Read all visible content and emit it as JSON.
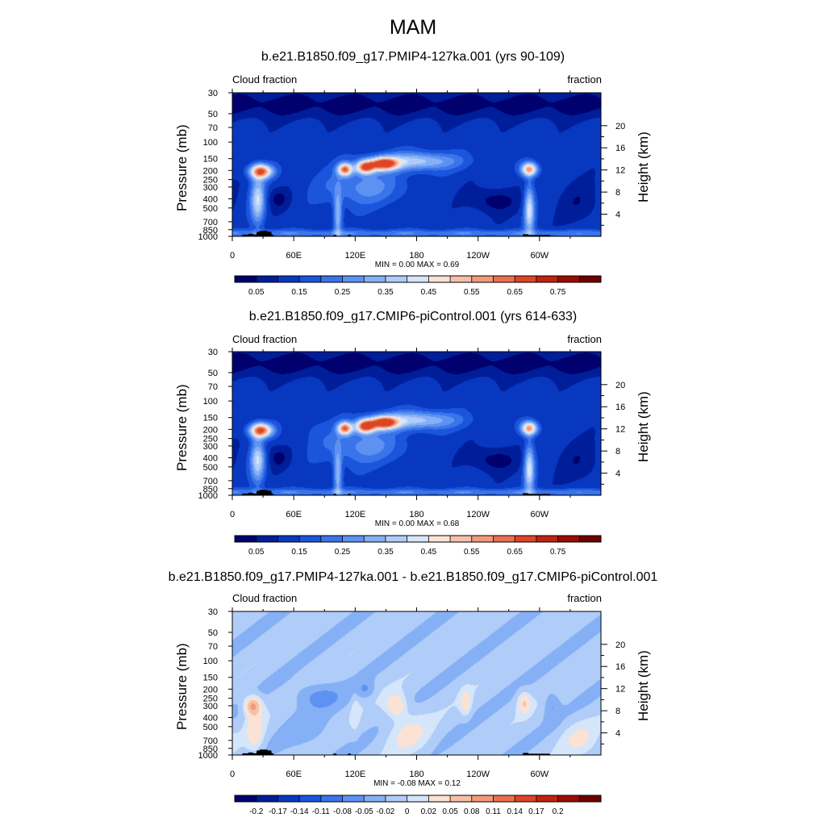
{
  "title": "MAM",
  "panels": [
    {
      "title": "b.e21.B1850.f09_g17.PMIP4-127ka.001 (yrs 90-109)",
      "left_label": "Cloud fraction",
      "right_label": "fraction",
      "y_label": "Pressure (mb)",
      "y2_label": "Height (km)",
      "min_max": "MIN =   0.00  MAX =   0.69"
    },
    {
      "title": "b.e21.B1850.f09_g17.CMIP6-piControl.001 (yrs 614-633)",
      "left_label": "Cloud fraction",
      "right_label": "fraction",
      "y_label": "Pressure (mb)",
      "y2_label": "Height (km)",
      "min_max": "MIN =   0.00  MAX =   0.68"
    },
    {
      "title": "b.e21.B1850.f09_g17.PMIP4-127ka.001 - b.e21.B1850.f09_g17.CMIP6-piControl.001",
      "left_label": "Cloud fraction",
      "right_label": "fraction",
      "y_label": "Pressure (mb)",
      "y2_label": "Height (km)",
      "min_max": "MIN =  -0.08  MAX =   0.12"
    }
  ],
  "chart_data": [
    {
      "type": "heatmap",
      "title": "b.e21.B1850.f09_g17.PMIP4-127ka.001 (yrs 90-109)",
      "variable": "Cloud fraction",
      "units": "fraction",
      "x_ticks": [
        "0",
        "60E",
        "120E",
        "180",
        "120W",
        "60W"
      ],
      "x_tick_values": [
        0,
        60,
        120,
        180,
        240,
        300
      ],
      "xlim": [
        0,
        360
      ],
      "y_ticks": [
        "30",
        "50",
        "70",
        "100",
        "150",
        "200",
        "250",
        "300",
        "400",
        "500",
        "700",
        "850",
        "1000"
      ],
      "y_tick_values": [
        30,
        50,
        70,
        100,
        150,
        200,
        250,
        300,
        400,
        500,
        700,
        850,
        1000
      ],
      "ylim": [
        1000,
        30
      ],
      "y2_ticks": [
        "20",
        "16",
        "12",
        "8",
        "4"
      ],
      "y2_tick_values": [
        20,
        16,
        12,
        8,
        4
      ],
      "min": 0.0,
      "max": 0.69,
      "colorbar_labels": [
        "0.05",
        "0.15",
        "0.25",
        "0.35",
        "0.45",
        "0.55",
        "0.65",
        "0.75"
      ],
      "colorbar_colors": [
        "#00006e",
        "#001e9a",
        "#0838c0",
        "#1a55dc",
        "#3a74ea",
        "#5e92f2",
        "#86b0f6",
        "#b0ccf8",
        "#d6e6fa",
        "#fbe2d4",
        "#f6c0a8",
        "#f29a7c",
        "#ea7050",
        "#dc4526",
        "#c02410",
        "#9a0c04",
        "#6e0000"
      ],
      "colorbar_mode": "seq"
    },
    {
      "type": "heatmap",
      "title": "b.e21.B1850.f09_g17.CMIP6-piControl.001 (yrs 614-633)",
      "variable": "Cloud fraction",
      "units": "fraction",
      "x_ticks": [
        "0",
        "60E",
        "120E",
        "180",
        "120W",
        "60W"
      ],
      "x_tick_values": [
        0,
        60,
        120,
        180,
        240,
        300
      ],
      "xlim": [
        0,
        360
      ],
      "y_ticks": [
        "30",
        "50",
        "70",
        "100",
        "150",
        "200",
        "250",
        "300",
        "400",
        "500",
        "700",
        "850",
        "1000"
      ],
      "y_tick_values": [
        30,
        50,
        70,
        100,
        150,
        200,
        250,
        300,
        400,
        500,
        700,
        850,
        1000
      ],
      "ylim": [
        1000,
        30
      ],
      "y2_ticks": [
        "20",
        "16",
        "12",
        "8",
        "4"
      ],
      "y2_tick_values": [
        20,
        16,
        12,
        8,
        4
      ],
      "min": 0.0,
      "max": 0.68,
      "colorbar_labels": [
        "0.05",
        "0.15",
        "0.25",
        "0.35",
        "0.45",
        "0.55",
        "0.65",
        "0.75"
      ],
      "colorbar_colors": [
        "#00006e",
        "#001e9a",
        "#0838c0",
        "#1a55dc",
        "#3a74ea",
        "#5e92f2",
        "#86b0f6",
        "#b0ccf8",
        "#d6e6fa",
        "#fbe2d4",
        "#f6c0a8",
        "#f29a7c",
        "#ea7050",
        "#dc4526",
        "#c02410",
        "#9a0c04",
        "#6e0000"
      ],
      "colorbar_mode": "seq"
    },
    {
      "type": "heatmap",
      "title": "b.e21.B1850.f09_g17.PMIP4-127ka.001 - b.e21.B1850.f09_g17.CMIP6-piControl.001",
      "variable": "Cloud fraction",
      "units": "fraction",
      "x_ticks": [
        "0",
        "60E",
        "120E",
        "180",
        "120W",
        "60W"
      ],
      "x_tick_values": [
        0,
        60,
        120,
        180,
        240,
        300
      ],
      "xlim": [
        0,
        360
      ],
      "y_ticks": [
        "30",
        "50",
        "70",
        "100",
        "150",
        "200",
        "250",
        "300",
        "400",
        "500",
        "700",
        "850",
        "1000"
      ],
      "y_tick_values": [
        30,
        50,
        70,
        100,
        150,
        200,
        250,
        300,
        400,
        500,
        700,
        850,
        1000
      ],
      "ylim": [
        1000,
        30
      ],
      "y2_ticks": [
        "20",
        "16",
        "12",
        "8",
        "4"
      ],
      "y2_tick_values": [
        20,
        16,
        12,
        8,
        4
      ],
      "min": -0.08,
      "max": 0.12,
      "colorbar_labels": [
        "-0.2",
        "-0.17",
        "-0.14",
        "-0.11",
        "-0.08",
        "-0.05",
        "-0.02",
        "0",
        "0.02",
        "0.05",
        "0.08",
        "0.11",
        "0.14",
        "0.17",
        "0.2"
      ],
      "colorbar_colors": [
        "#00006e",
        "#001e9a",
        "#0838c0",
        "#1a55dc",
        "#3a74ea",
        "#5e92f2",
        "#86b0f6",
        "#b0ccf8",
        "#d6e6fa",
        "#fbe2d4",
        "#f6c0a8",
        "#f29a7c",
        "#ea7050",
        "#dc4526",
        "#c02410",
        "#9a0c04",
        "#6e0000"
      ],
      "colorbar_mode": "diff"
    }
  ]
}
